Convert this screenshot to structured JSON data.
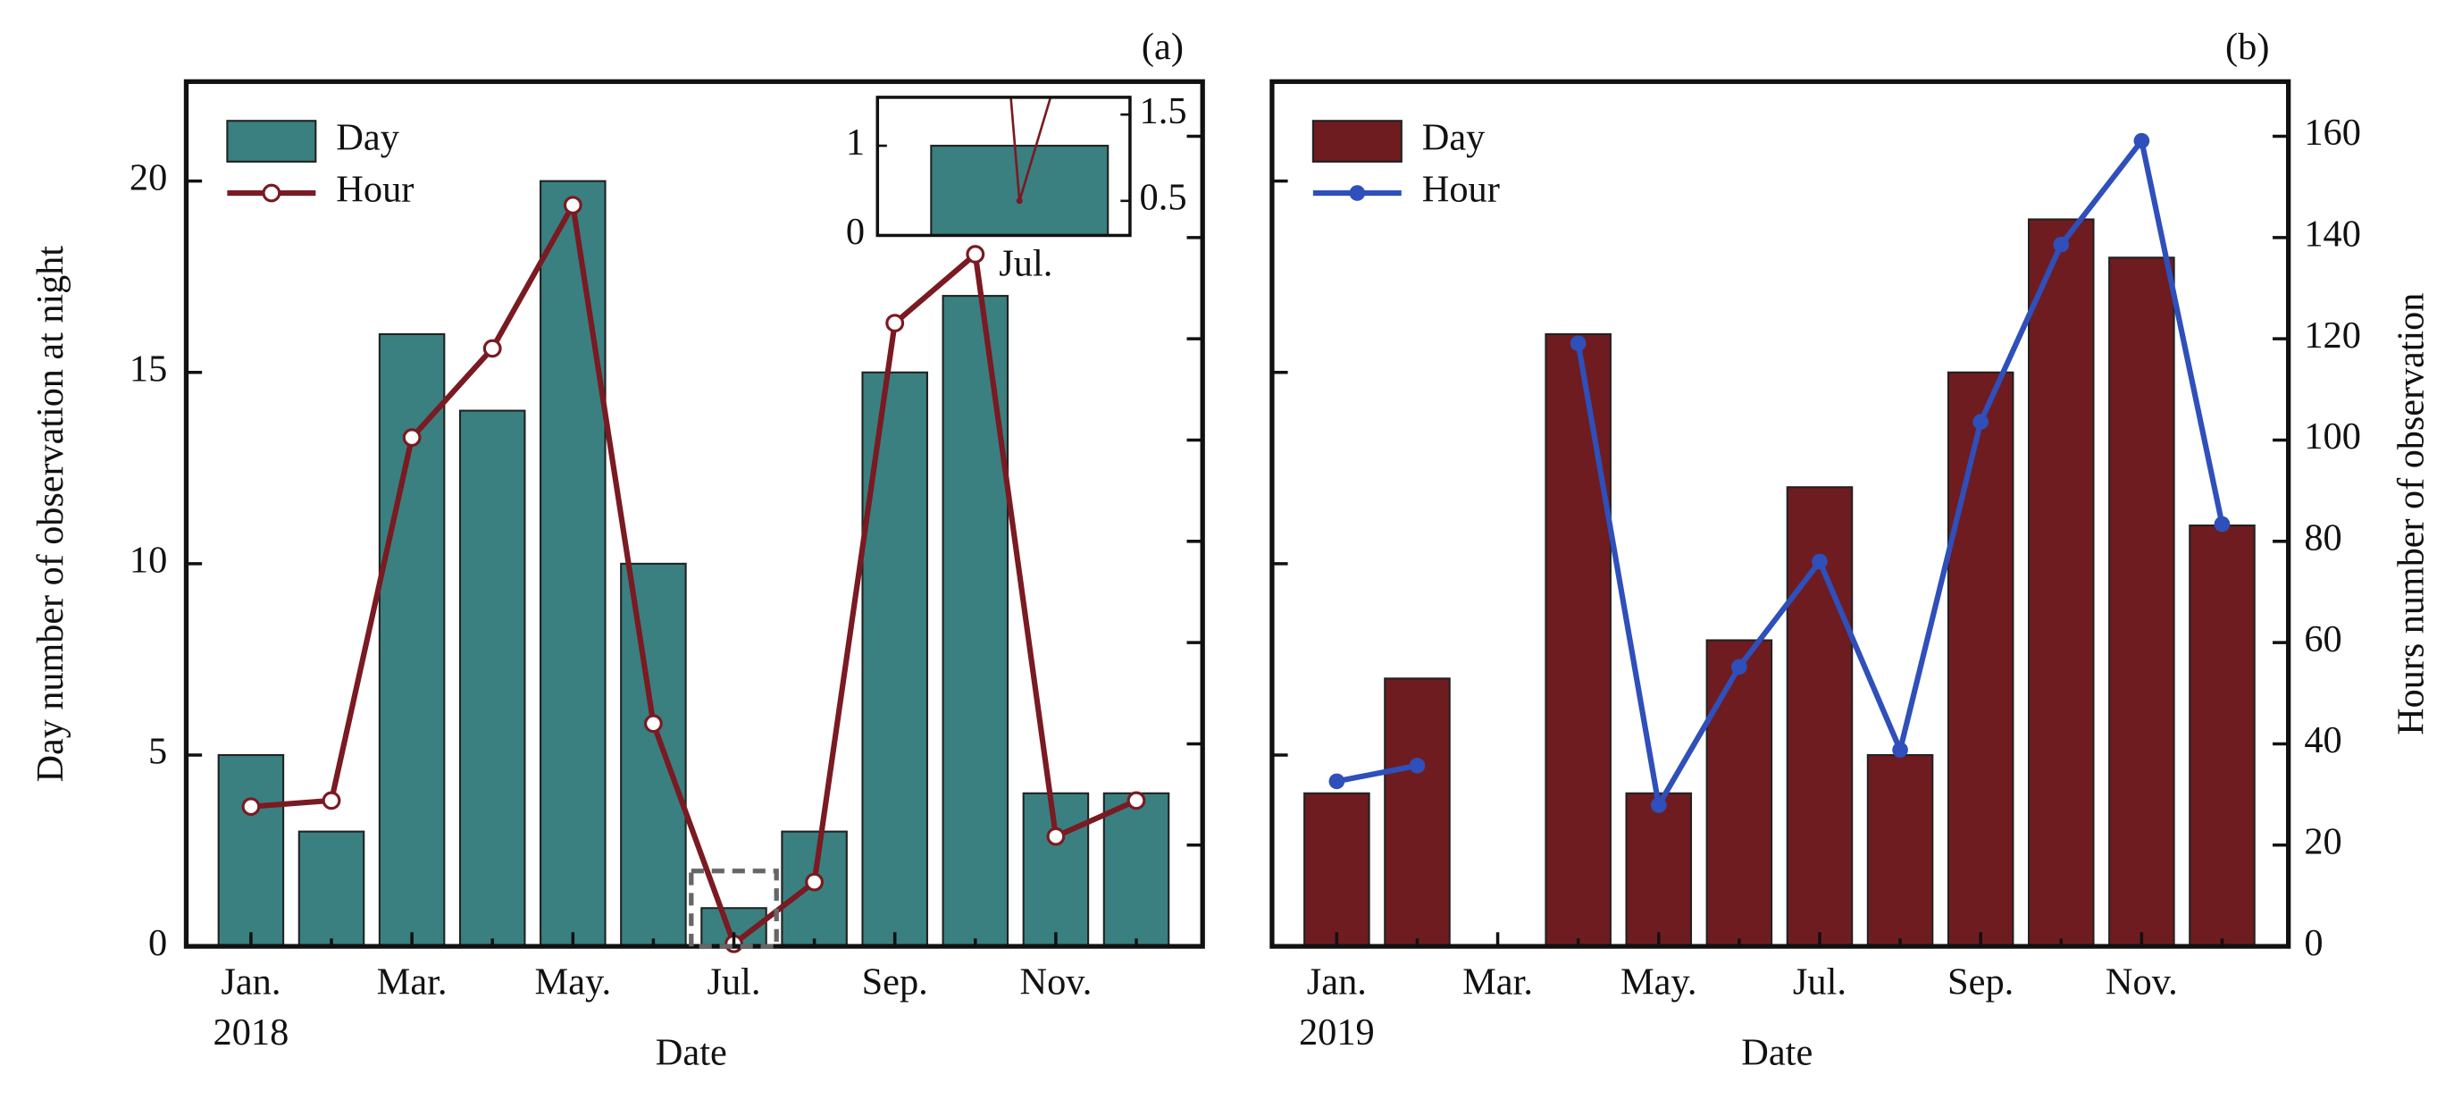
{
  "chart_data": [
    {
      "type": "bar",
      "panel_label": "(a)",
      "x_label": "Date",
      "y_label": "Day number of observation at night",
      "categories": [
        "Jan.",
        null,
        "Mar.",
        null,
        "May.",
        null,
        "Jul.",
        null,
        "Sep.",
        null,
        "Nov.",
        null
      ],
      "x_sublabel": "2018",
      "series": [
        {
          "name": "Day",
          "color": "#3a8080",
          "values": [
            5,
            3,
            16,
            14,
            20,
            10,
            1,
            3,
            15,
            17,
            4,
            4
          ]
        },
        {
          "name": "Hour",
          "color": "#7a1a22",
          "type": "line",
          "axis": "y2",
          "marker": "open",
          "values": [
            27.6,
            28.8,
            100.5,
            118.1,
            146.4,
            44.0,
            0.5,
            12.7,
            123.1,
            136.7,
            21.7,
            28.8
          ]
        }
      ],
      "ylim": [
        0,
        22.6
      ],
      "yticks": [
        0,
        5,
        10,
        15,
        20
      ],
      "ytick_labels": true,
      "y2lim": [
        0,
        170.8
      ],
      "y2ticks": [
        0,
        20,
        40,
        60,
        80,
        100,
        120,
        140,
        160
      ],
      "y2tick_labels": false,
      "inset": {
        "categories": [
          "Jul."
        ],
        "ylim": [
          0,
          1.54
        ],
        "yticks": [
          0,
          1
        ],
        "y2lim": [
          0.1,
          1.7
        ],
        "y2ticks": [
          0.5,
          1.5
        ]
      }
    },
    {
      "type": "bar",
      "panel_label": "(b)",
      "x_label": "Date",
      "y2_label": "Hours number of observation",
      "categories": [
        "Jan.",
        null,
        "Mar.",
        null,
        "May.",
        null,
        "Jul.",
        null,
        "Sep.",
        null,
        "Nov.",
        null
      ],
      "x_sublabel": "2019",
      "series": [
        {
          "name": "Day",
          "color": "#6e1c20",
          "values": [
            4,
            7,
            0,
            16,
            4,
            8,
            12,
            5,
            15,
            19,
            18,
            11
          ]
        },
        {
          "name": "Hour",
          "color": "#2f4fba",
          "type": "line",
          "axis": "y2",
          "marker": "filled",
          "values": [
            32.6,
            35.7,
            null,
            119.1,
            27.9,
            55.2,
            76.0,
            38.8,
            103.6,
            138.6,
            159.1,
            83.4
          ]
        }
      ],
      "ylim": [
        0,
        22.6
      ],
      "yticks": [
        0,
        5,
        10,
        15,
        20
      ],
      "ytick_labels": false,
      "y2lim": [
        0,
        170.8
      ],
      "y2ticks": [
        0,
        20,
        40,
        60,
        80,
        100,
        120,
        140,
        160
      ],
      "y2tick_labels": true
    }
  ]
}
